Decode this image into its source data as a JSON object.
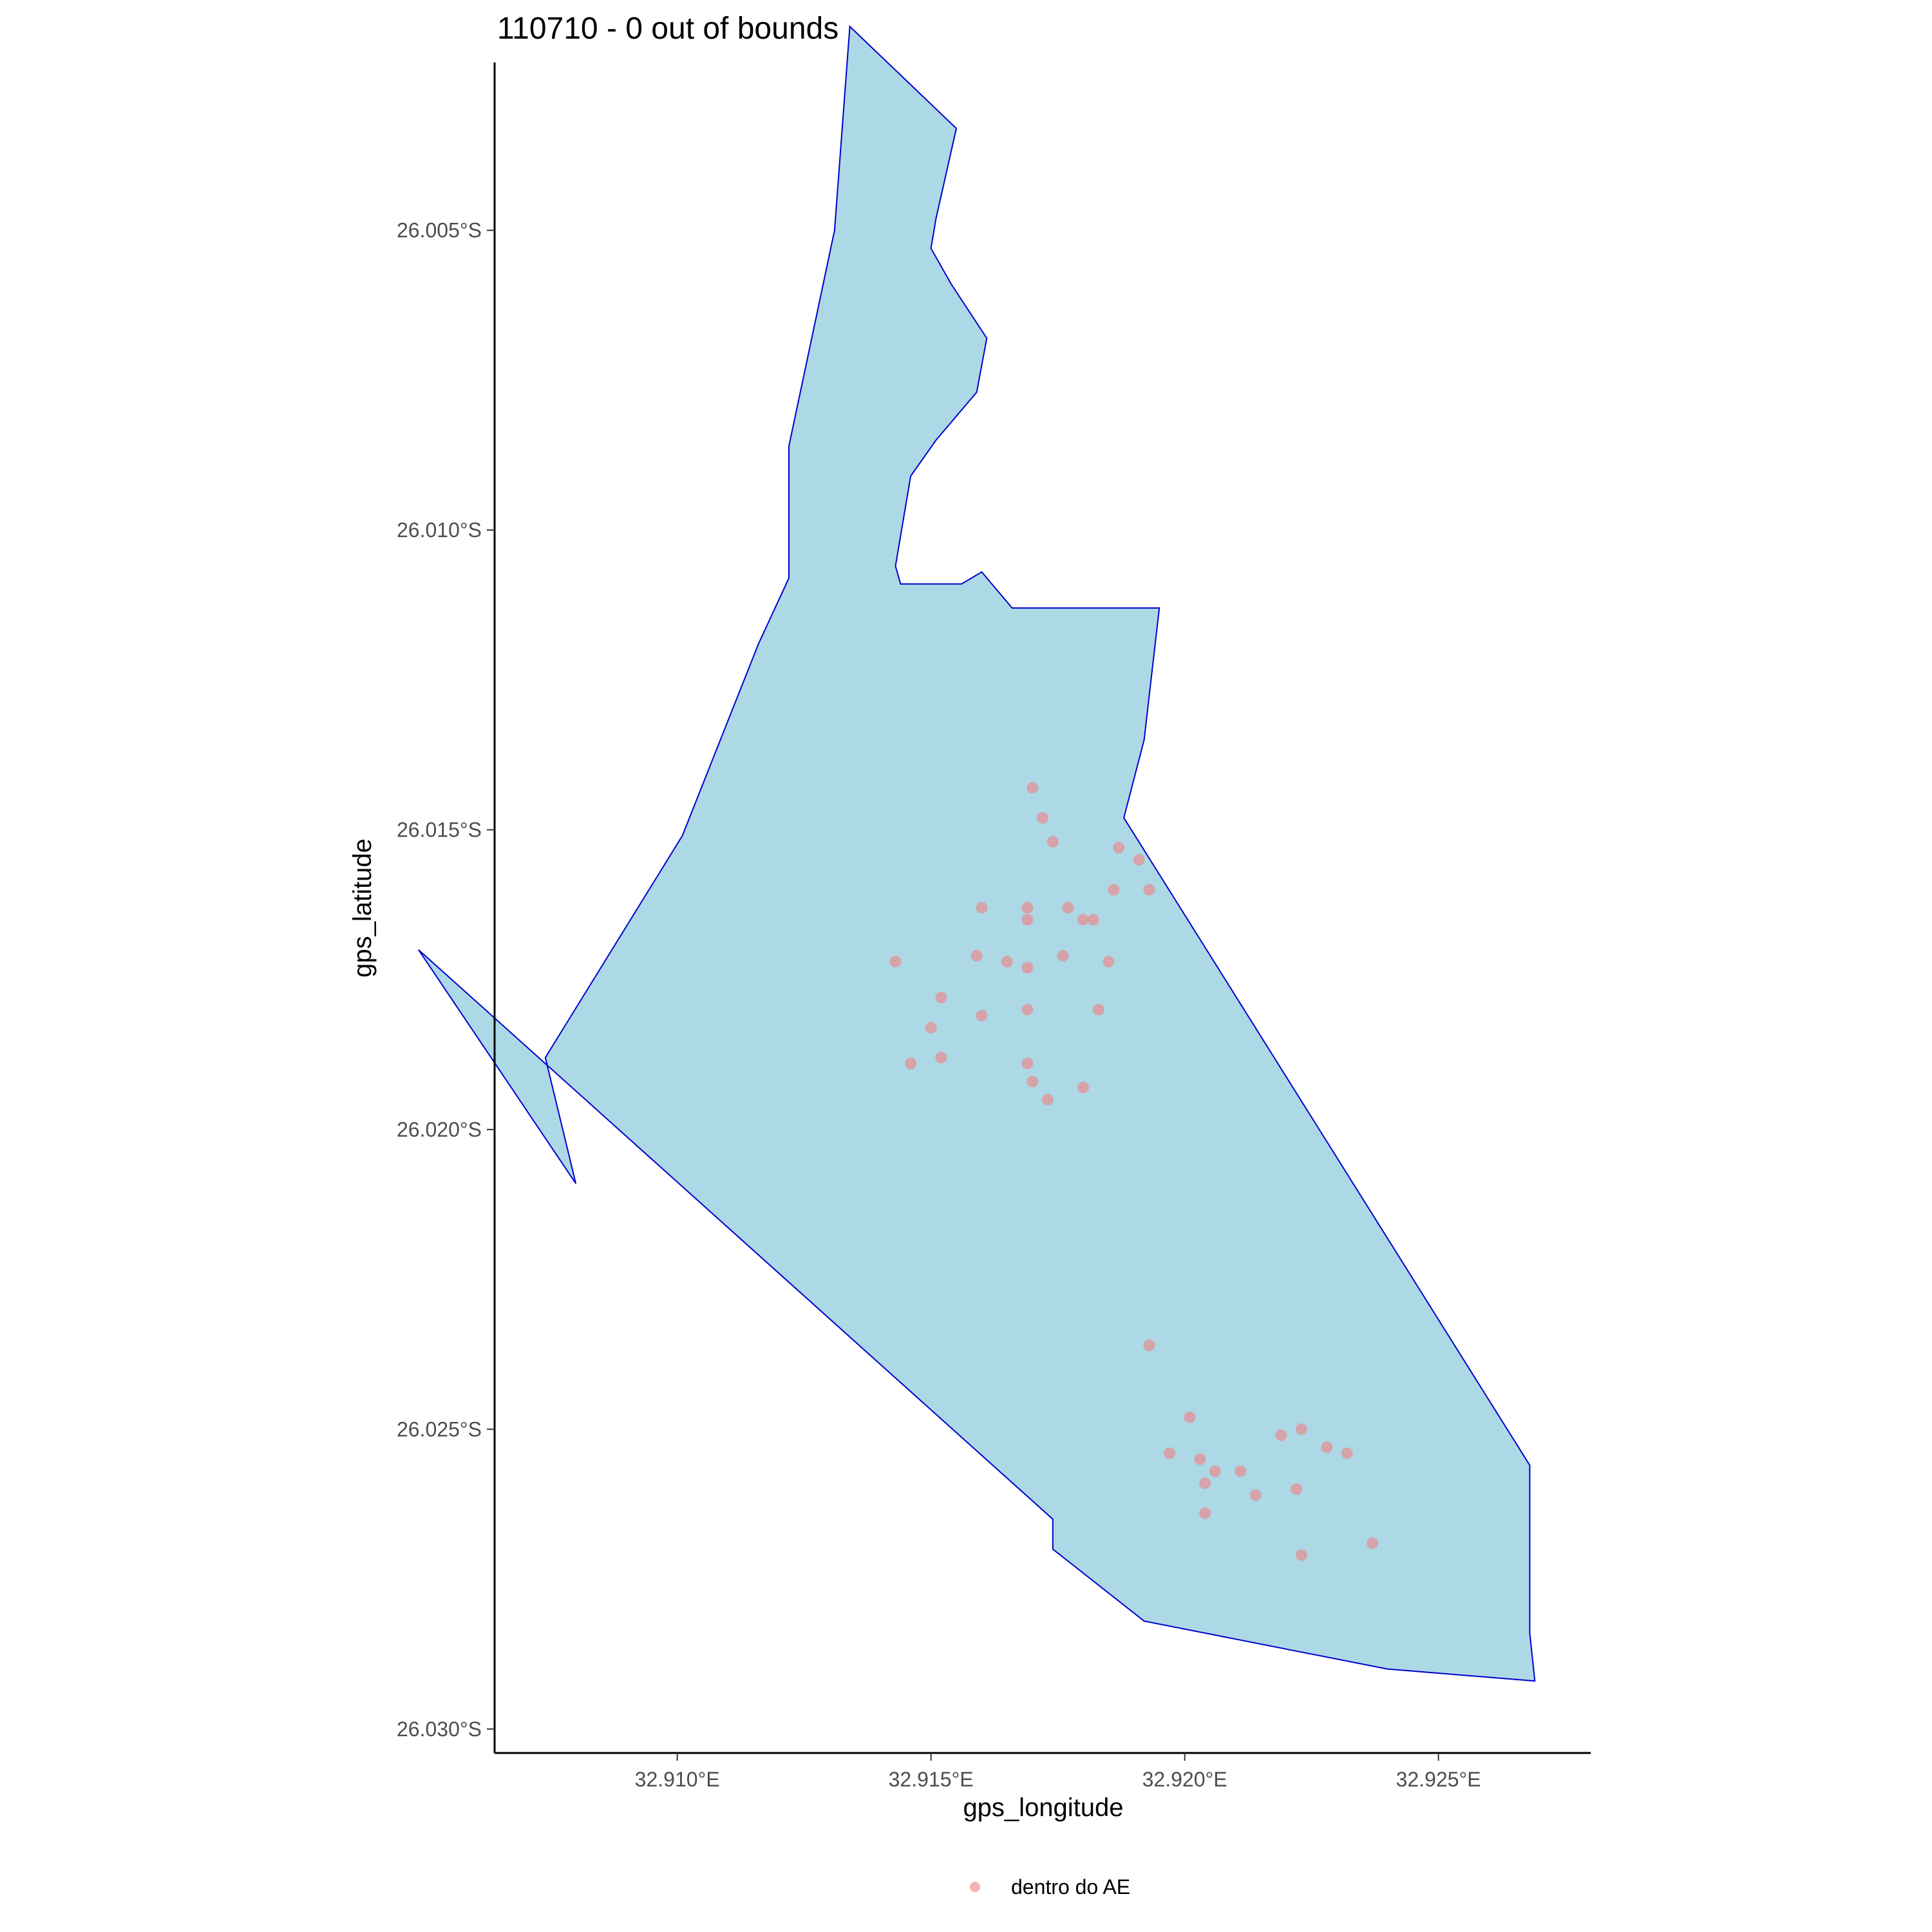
{
  "title": "110710 - 0 out of bounds",
  "colors": {
    "polygon_fill": "#add8e6",
    "polygon_stroke": "#0000cd",
    "point": "#f08080",
    "axis": "#000000",
    "tick_text": "#4d4d4d"
  },
  "chart_data": {
    "type": "scatter",
    "title": "110710 - 0 out of bounds",
    "xlabel": "gps_longitude",
    "ylabel": "gps_latitude",
    "xlim": [
      32.9064,
      32.928
    ],
    "ylim": [
      -26.0304,
      -26.0022
    ],
    "x_ticks": [
      {
        "value": 32.91,
        "label": "32.910°E"
      },
      {
        "value": 32.915,
        "label": "32.915°E"
      },
      {
        "value": 32.92,
        "label": "32.920°E"
      },
      {
        "value": 32.925,
        "label": "32.925°E"
      }
    ],
    "y_ticks": [
      {
        "value": -26.005,
        "label": "26.005°S"
      },
      {
        "value": -26.01,
        "label": "26.010°S"
      },
      {
        "value": -26.015,
        "label": "26.015°S"
      },
      {
        "value": -26.02,
        "label": "26.020°S"
      },
      {
        "value": -26.025,
        "label": "26.025°S"
      },
      {
        "value": -26.03,
        "label": "26.030°S"
      }
    ],
    "grid": false,
    "legend_position": "bottom",
    "polygon": [
      [
        32.9134,
        -26.0016
      ],
      [
        32.9155,
        -26.0033
      ],
      [
        32.9151,
        -26.0048
      ],
      [
        32.915,
        -26.0053
      ],
      [
        32.9154,
        -26.0059
      ],
      [
        32.9161,
        -26.0068
      ],
      [
        32.9159,
        -26.0077
      ],
      [
        32.9151,
        -26.0085
      ],
      [
        32.9146,
        -26.0091
      ],
      [
        32.9143,
        -26.0106
      ],
      [
        32.9144,
        -26.0109
      ],
      [
        32.9149,
        -26.0109
      ],
      [
        32.9156,
        -26.0109
      ],
      [
        32.9158,
        -26.0108
      ],
      [
        32.916,
        -26.0107
      ],
      [
        32.9166,
        -26.0113
      ],
      [
        32.919,
        -26.0113
      ],
      [
        32.9195,
        -26.0113
      ],
      [
        32.9192,
        -26.0135
      ],
      [
        32.9188,
        -26.0148
      ],
      [
        32.9268,
        -26.0256
      ],
      [
        32.9268,
        -26.0284
      ],
      [
        32.9269,
        -26.0292
      ],
      [
        32.924,
        -26.029
      ],
      [
        32.9192,
        -26.0282
      ],
      [
        32.9174,
        -26.027
      ],
      [
        32.9174,
        -26.0267
      ],
      [
        32.9174,
        -26.0265
      ],
      [
        32.9049,
        -26.017
      ],
      [
        32.908,
        -26.0209
      ],
      [
        32.9074,
        -26.0188
      ],
      [
        32.9101,
        -26.0151
      ],
      [
        32.9116,
        -26.0119
      ],
      [
        32.9122,
        -26.0108
      ],
      [
        32.9122,
        -26.0086
      ],
      [
        32.9131,
        -26.005
      ]
    ],
    "series": [
      {
        "name": "dentro do AE",
        "points": [
          [
            32.917,
            -26.0143
          ],
          [
            32.9172,
            -26.0148
          ],
          [
            32.9174,
            -26.0152
          ],
          [
            32.9187,
            -26.0153
          ],
          [
            32.9191,
            -26.0155
          ],
          [
            32.9193,
            -26.016
          ],
          [
            32.9186,
            -26.016
          ],
          [
            32.916,
            -26.0163
          ],
          [
            32.9169,
            -26.0163
          ],
          [
            32.9177,
            -26.0163
          ],
          [
            32.9169,
            -26.0165
          ],
          [
            32.918,
            -26.0165
          ],
          [
            32.9182,
            -26.0165
          ],
          [
            32.9159,
            -26.0171
          ],
          [
            32.9143,
            -26.0172
          ],
          [
            32.9165,
            -26.0172
          ],
          [
            32.9176,
            -26.0171
          ],
          [
            32.9185,
            -26.0172
          ],
          [
            32.9169,
            -26.0173
          ],
          [
            32.9152,
            -26.0178
          ],
          [
            32.9169,
            -26.018
          ],
          [
            32.916,
            -26.0181
          ],
          [
            32.9183,
            -26.018
          ],
          [
            32.915,
            -26.0183
          ],
          [
            32.9152,
            -26.0188
          ],
          [
            32.9146,
            -26.0189
          ],
          [
            32.9169,
            -26.0189
          ],
          [
            32.917,
            -26.0192
          ],
          [
            32.918,
            -26.0193
          ],
          [
            32.9173,
            -26.0195
          ],
          [
            32.9193,
            -26.0236
          ],
          [
            32.9201,
            -26.0248
          ],
          [
            32.9223,
            -26.025
          ],
          [
            32.9219,
            -26.0251
          ],
          [
            32.9228,
            -26.0253
          ],
          [
            32.9197,
            -26.0254
          ],
          [
            32.9203,
            -26.0255
          ],
          [
            32.9232,
            -26.0254
          ],
          [
            32.9206,
            -26.0257
          ],
          [
            32.9211,
            -26.0257
          ],
          [
            32.9204,
            -26.0259
          ],
          [
            32.9222,
            -26.026
          ],
          [
            32.9214,
            -26.0261
          ],
          [
            32.9204,
            -26.0264
          ],
          [
            32.9237,
            -26.0269
          ],
          [
            32.9223,
            -26.0271
          ]
        ]
      }
    ],
    "legend": [
      {
        "label": "dentro do AE",
        "marker": "circle",
        "color": "#f08080"
      }
    ]
  }
}
